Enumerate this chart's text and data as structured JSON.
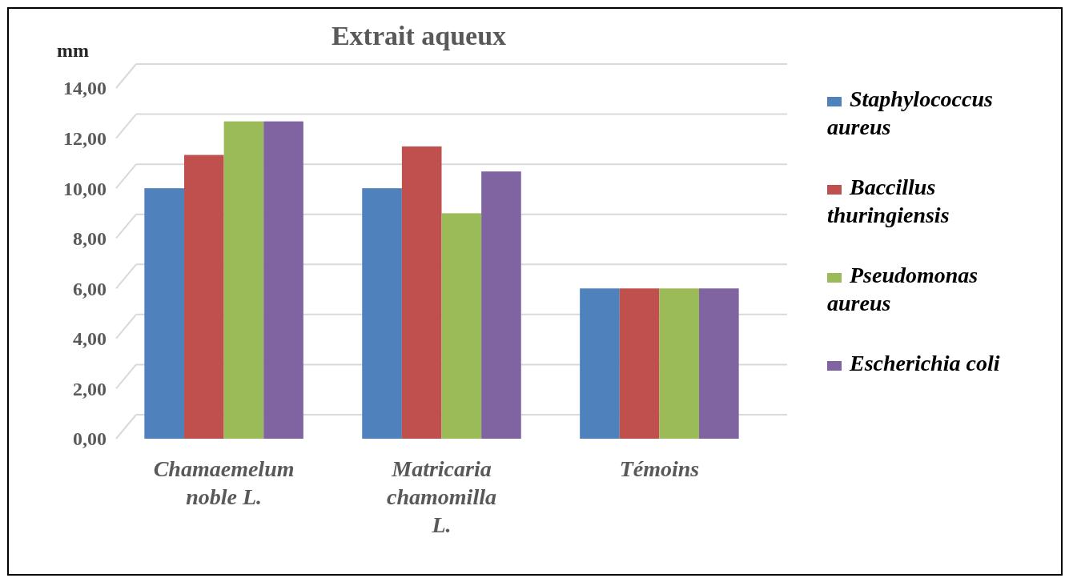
{
  "chart_data": {
    "type": "bar",
    "title": "Extrait aqueux",
    "ylabel": "mm",
    "categories": [
      "Chamaemelum noble L.",
      "Matricaria chamomilla L.",
      "Témoins"
    ],
    "series": [
      {
        "name": "Staphylococcus aureus",
        "color": "#4f81bd",
        "values": [
          10,
          10,
          6
        ]
      },
      {
        "name": "Baccillus thuringiensis",
        "color": "#c0504d",
        "values": [
          11.33,
          11.67,
          6
        ]
      },
      {
        "name": "Pseudomonas aureus",
        "color": "#9bbb59",
        "values": [
          12.67,
          9,
          6
        ]
      },
      {
        "name": "Escherichia coli",
        "color": "#8064a2",
        "values": [
          12.67,
          10.67,
          6
        ]
      }
    ],
    "ylim": [
      0,
      14
    ],
    "yticks": [
      {
        "value": 0,
        "label": "0,00"
      },
      {
        "value": 2,
        "label": "2,00"
      },
      {
        "value": 4,
        "label": "4,00"
      },
      {
        "value": 6,
        "label": "6,00"
      },
      {
        "value": 8,
        "label": "8,00"
      },
      {
        "value": 10,
        "label": "10,00"
      },
      {
        "value": 12,
        "label": "12,00"
      },
      {
        "value": 14,
        "label": "14,00"
      }
    ],
    "grid": true,
    "legend": "right"
  }
}
